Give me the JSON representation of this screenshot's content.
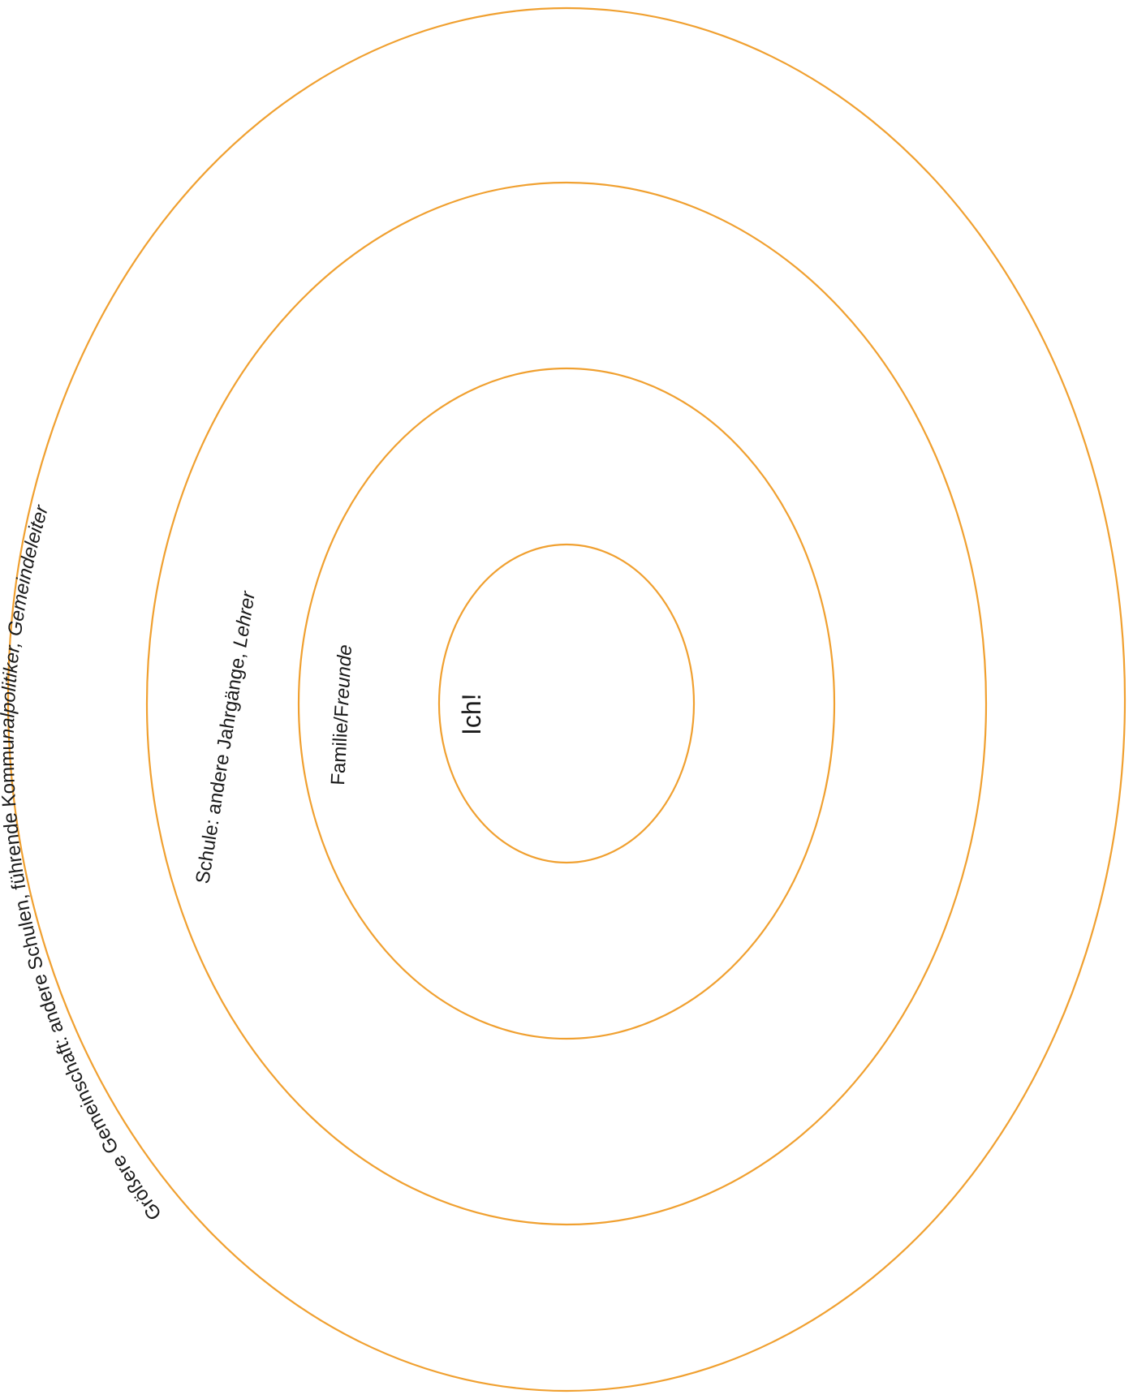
{
  "diagram": {
    "stroke_color": "#f0a030",
    "text_color": "#1a1a1a",
    "rings": [
      {
        "id": "outer",
        "label_parts": [
          {
            "text": "Größere Gemeinschaft: andere Schulen, führende Kommu",
            "italic": false
          },
          {
            "text": "nalpolitiker, Gemeindeleiter",
            "italic": true
          }
        ]
      },
      {
        "id": "second",
        "label_parts": [
          {
            "text": "Schule: andere Jahrgänge, ",
            "italic": false
          },
          {
            "text": "Lehrer",
            "italic": true
          }
        ]
      },
      {
        "id": "third",
        "label_parts": [
          {
            "text": "Familie/F",
            "italic": false
          },
          {
            "text": "reunde",
            "italic": true
          }
        ]
      },
      {
        "id": "center",
        "label_parts": [
          {
            "text": "Ich!",
            "italic": false
          }
        ]
      }
    ]
  }
}
